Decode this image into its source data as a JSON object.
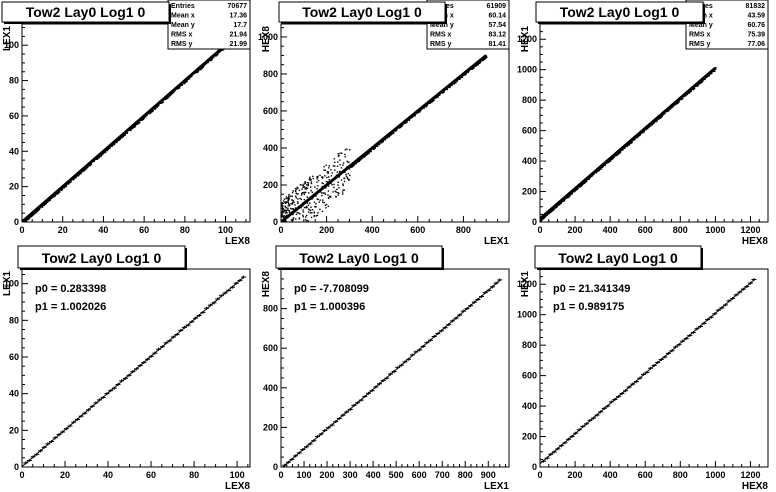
{
  "chart_data": [
    {
      "type": "scatter",
      "title": "Tow2 Lay0 Log1 0",
      "xlabel": "LEX8",
      "ylabel": "LEX1",
      "xlim": [
        0,
        112
      ],
      "ylim": [
        0,
        112
      ],
      "xticks": [
        0,
        20,
        40,
        60,
        80,
        100
      ],
      "yticks": [
        0,
        20,
        40,
        60,
        80,
        100
      ],
      "stats": [
        {
          "label": "Entries",
          "value": "70677"
        },
        {
          "label": "Mean x",
          "value": "17.36"
        },
        {
          "label": "Mean y",
          "value": "17.7"
        },
        {
          "label": "RMS x",
          "value": "21.94"
        },
        {
          "label": "RMS y",
          "value": "21.99"
        }
      ],
      "trend": {
        "slope": 1.0,
        "intercept": 0,
        "xmax": 105
      }
    },
    {
      "type": "scatter",
      "title": "Tow2 Lay0 Log1 0",
      "xlabel": "LEX1",
      "ylabel": "HEX8",
      "xlim": [
        0,
        1000
      ],
      "ylim": [
        0,
        1070
      ],
      "xticks": [
        0,
        200,
        400,
        600,
        800
      ],
      "yticks": [
        0,
        200,
        400,
        600,
        800,
        1000
      ],
      "stats": [
        {
          "label": "Entries",
          "value": "61909"
        },
        {
          "label": "Mean x",
          "value": "60.14"
        },
        {
          "label": "Mean y",
          "value": "57.54"
        },
        {
          "label": "RMS x",
          "value": "83.12"
        },
        {
          "label": "RMS y",
          "value": "81.41"
        }
      ],
      "trend": {
        "slope": 1.0,
        "intercept": 0,
        "xmax": 900
      }
    },
    {
      "type": "scatter",
      "title": "Tow2 Lay0 Log1 0",
      "xlabel": "HEX8",
      "ylabel": "HEX1",
      "xlim": [
        0,
        1300
      ],
      "ylim": [
        0,
        1300
      ],
      "xticks": [
        0,
        200,
        400,
        600,
        800,
        1000,
        1200
      ],
      "yticks": [
        0,
        200,
        400,
        600,
        800,
        1000,
        1200
      ],
      "stats": [
        {
          "label": "Entries",
          "value": "81832"
        },
        {
          "label": "Mean x",
          "value": "43.59"
        },
        {
          "label": "Mean y",
          "value": "60.76"
        },
        {
          "label": "RMS x",
          "value": "75.39"
        },
        {
          "label": "RMS y",
          "value": "77.06"
        }
      ],
      "trend": {
        "slope": 0.99,
        "intercept": 21,
        "xmax": 1000
      }
    },
    {
      "type": "line",
      "title": "Tow2 Lay0 Log1 0",
      "xlabel": "LEX8",
      "ylabel": "LEX1",
      "xlim": [
        0,
        106
      ],
      "ylim": [
        0,
        108
      ],
      "xticks": [
        0,
        20,
        40,
        60,
        80,
        100
      ],
      "yticks": [
        0,
        20,
        40,
        60,
        80,
        100
      ],
      "fit": [
        {
          "label": "p0 = 0.283398"
        },
        {
          "label": "p1 = 1.002026"
        }
      ],
      "trend": {
        "slope": 1.002026,
        "intercept": 0.283398,
        "xmin": 0,
        "xmax": 103
      }
    },
    {
      "type": "line",
      "title": "Tow2 Lay0 Log1 0",
      "xlabel": "LEX1",
      "ylabel": "HEX8",
      "xlim": [
        0,
        990
      ],
      "ylim": [
        0,
        1000
      ],
      "xticks": [
        0,
        100,
        200,
        300,
        400,
        500,
        600,
        700,
        800,
        900
      ],
      "yticks": [
        0,
        200,
        400,
        600,
        800
      ],
      "fit": [
        {
          "label": "p0 = -7.708099"
        },
        {
          "label": "p1 = 1.000396"
        }
      ],
      "trend": {
        "slope": 1.000396,
        "intercept": -7.708099,
        "xmin": 0,
        "xmax": 950
      }
    },
    {
      "type": "line",
      "title": "Tow2 Lay0 Log1 0",
      "xlabel": "HEX8",
      "ylabel": "HEX1",
      "xlim": [
        0,
        1300
      ],
      "ylim": [
        0,
        1300
      ],
      "xticks": [
        0,
        200,
        400,
        600,
        800,
        1000,
        1200
      ],
      "yticks": [
        0,
        200,
        400,
        600,
        800,
        1000,
        1200
      ],
      "fit": [
        {
          "label": "p0 = 21.341349"
        },
        {
          "label": "p1 = 0.989175"
        }
      ],
      "trend": {
        "slope": 0.989175,
        "intercept": 21.341349,
        "xmin": 0,
        "xmax": 1220
      }
    }
  ]
}
